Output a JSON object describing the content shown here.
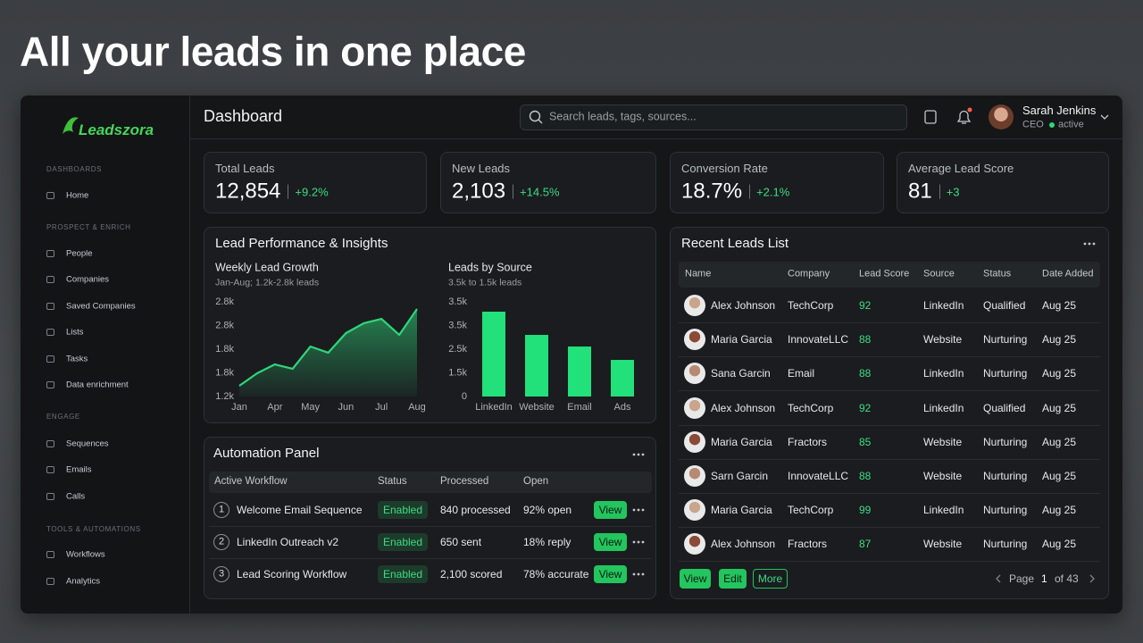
{
  "headline": "All your leads in one place",
  "sidebar": {
    "logo": "Leadszora",
    "sections": [
      {
        "title": "DASHBOARDS",
        "items": [
          "Home"
        ]
      },
      {
        "title": "PROSPECT & ENRICH",
        "items": [
          "People",
          "Companies",
          "Saved Companies",
          "Lists",
          "Tasks",
          "Data enrichment"
        ]
      },
      {
        "title": "ENGAGE",
        "items": [
          "Sequences",
          "Emails",
          "Calls"
        ]
      },
      {
        "title": "TOOLS & AUTOMATIONS",
        "items": [
          "Workflows",
          "Analytics"
        ]
      }
    ]
  },
  "topbar": {
    "title": "Dashboard",
    "search_placeholder": "Search leads, tags, sources...",
    "user": {
      "name": "Sarah Jenkins",
      "role": "CEO",
      "status": "active"
    }
  },
  "kpis": [
    {
      "label": "Total Leads",
      "value": "12,854",
      "change": "+9.2%"
    },
    {
      "label": "New Leads",
      "value": "2,103",
      "change": "+14.5%"
    },
    {
      "label": "Conversion Rate",
      "value": "18.7%",
      "change": "+2.1%"
    },
    {
      "label": "Average Lead Score",
      "value": "81",
      "change": "+3"
    }
  ],
  "performance": {
    "title": "Lead Performance & Insights",
    "charts": [
      {
        "type": "line",
        "title": "Weekly Lead Growth",
        "subtitle": "Jan-Aug; 1.2k-2.8k leads",
        "x": [
          0,
          0.5,
          1,
          1.5,
          2,
          2.5,
          3,
          3.5,
          4,
          4.5,
          5
        ],
        "values": [
          1381,
          1592,
          1743,
          1668,
          2045,
          1940,
          2272,
          2438,
          2513,
          2242,
          2679
        ],
        "xlim": [
          0,
          5
        ],
        "xticks": [
          {
            "value": 0,
            "label": "Jan"
          },
          {
            "value": 1,
            "label": "Apr"
          },
          {
            "value": 2,
            "label": "May"
          },
          {
            "value": 3,
            "label": "Jun"
          },
          {
            "value": 4,
            "label": "Jul"
          },
          {
            "value": 5,
            "label": "Aug"
          }
        ],
        "ylim": [
          1200,
          2800
        ],
        "ytick_labels": [
          "2.8k",
          "2.8k",
          "1.8k",
          "1.8k",
          "1.2k"
        ],
        "color": "#2fd67a"
      },
      {
        "type": "bar",
        "title": "Leads by Source",
        "subtitle": "3.5k to 1.5k leads",
        "categories": [
          "LinkedIn",
          "Website",
          "Email",
          "Ads"
        ],
        "values": [
          3137,
          2278,
          1849,
          1354
        ],
        "ylim": [
          0,
          3500
        ],
        "ytick_labels": [
          "3.5k",
          "3.5k",
          "2.5k",
          "1.5k",
          "0"
        ],
        "color": "#22e07a"
      }
    ]
  },
  "automation": {
    "title": "Automation Panel",
    "columns": [
      "Active Workflow",
      "Status",
      "Processed",
      "Open"
    ],
    "rows": [
      {
        "step": "1",
        "workflow": "Welcome Email Sequence",
        "status": "Enabled",
        "processed": "840 processed",
        "open": "92% open",
        "action": "View"
      },
      {
        "step": "2",
        "workflow": "LinkedIn Outreach v2",
        "status": "Enabled",
        "processed": "650 sent",
        "open": "18% reply",
        "action": "View"
      },
      {
        "step": "3",
        "workflow": "Lead Scoring Workflow",
        "status": "Enabled",
        "processed": "2,100 scored",
        "open": "78% accurate",
        "action": "View"
      }
    ]
  },
  "leads": {
    "title": "Recent Leads List",
    "columns": [
      "Name",
      "Company",
      "Lead Score",
      "Source",
      "Status",
      "Date Added"
    ],
    "rows": [
      {
        "name": "Alex Johnson",
        "company": "TechCorp",
        "score": 92,
        "source": "LinkedIn",
        "status": "Qualified",
        "date": "Aug 25"
      },
      {
        "name": "Maria Garcia",
        "company": "InnovateLLC",
        "score": 88,
        "source": "Website",
        "status": "Nurturing",
        "date": "Aug 25"
      },
      {
        "name": "Sana Garcin",
        "company": "Email",
        "score": 88,
        "source": "LinkedIn",
        "status": "Nurturing",
        "date": "Aug 25"
      },
      {
        "name": "Alex Johnson",
        "company": "TechCorp",
        "score": 92,
        "source": "LinkedIn",
        "status": "Qualified",
        "date": "Aug 25"
      },
      {
        "name": "Maria Garcia",
        "company": "Fractors",
        "score": 85,
        "source": "Website",
        "status": "Nurturing",
        "date": "Aug 25"
      },
      {
        "name": "Sarn Garcin",
        "company": "InnovateLLC",
        "score": 88,
        "source": "Website",
        "status": "Nurturing",
        "date": "Aug 25"
      },
      {
        "name": "Maria Garcia",
        "company": "TechCorp",
        "score": 99,
        "source": "LinkedIn",
        "status": "Nurturing",
        "date": "Aug 25"
      },
      {
        "name": "Alex Johnson",
        "company": "Fractors",
        "score": 87,
        "source": "Website",
        "status": "Nurturing",
        "date": "Aug 25"
      }
    ],
    "actions": [
      "View",
      "Edit",
      "More"
    ],
    "pagination": {
      "label": "Page",
      "page": 1,
      "total": "of 43"
    }
  }
}
